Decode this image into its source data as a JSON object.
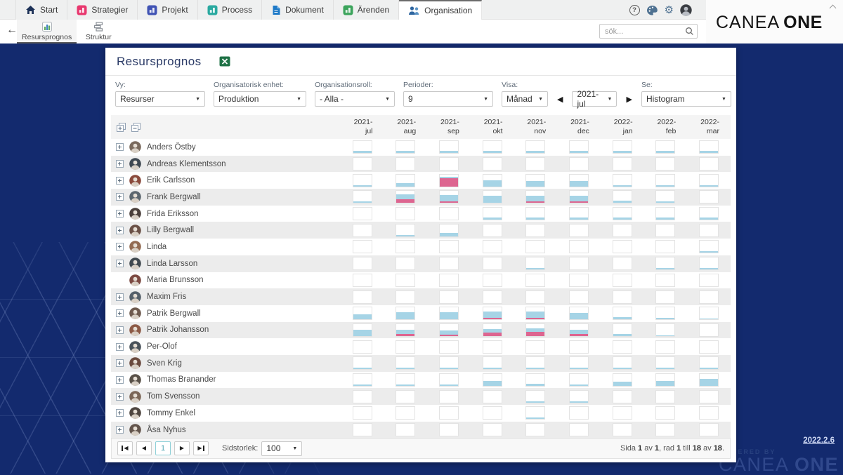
{
  "app": {
    "logo_regular": "CANEA",
    "logo_bold": "ONE",
    "version": "2022.2.6",
    "powered_by": "POWERED BY",
    "watermark_regular": "CANEA",
    "watermark_bold": "ONE",
    "help_glyph": "?"
  },
  "top_nav": {
    "tabs": [
      {
        "label": "Start",
        "icon": "home",
        "color": "#1c3157",
        "active": false
      },
      {
        "label": "Strategier",
        "icon": "square",
        "color": "#e8376e",
        "active": false
      },
      {
        "label": "Projekt",
        "icon": "square",
        "color": "#4053b4",
        "active": false
      },
      {
        "label": "Process",
        "icon": "square",
        "color": "#2aa9a0",
        "active": false
      },
      {
        "label": "Dokument",
        "icon": "doc",
        "color": "#1d79c7",
        "active": false
      },
      {
        "label": "Ärenden",
        "icon": "square",
        "color": "#3ca45c",
        "active": false
      },
      {
        "label": "Organisation",
        "icon": "people",
        "color": "#2f66a0",
        "active": true
      }
    ]
  },
  "toolbar": {
    "back_glyph": "←",
    "tabs": [
      {
        "label": "Resursprognos",
        "icon": "chart",
        "active": true
      },
      {
        "label": "Struktur",
        "icon": "tree",
        "active": false
      }
    ],
    "search_placeholder": "sök..."
  },
  "panel": {
    "title": "Resursprognos",
    "filters": [
      {
        "label": "Vy:",
        "value": "Resurser",
        "nav": false
      },
      {
        "label": "Organisatorisk enhet:",
        "value": "Produktion",
        "nav": false
      },
      {
        "label": "Organisationsroll:",
        "value": "- Alla -",
        "nav": false
      },
      {
        "label": "Perioder:",
        "value": "9",
        "nav": false
      },
      {
        "label": "Visa:",
        "value": "Månad",
        "nav": false
      },
      {
        "label": "",
        "value": "2021-jul",
        "nav": true
      },
      {
        "label": "Se:",
        "value": "Histogram",
        "nav": false
      }
    ]
  },
  "grid": {
    "months": [
      {
        "line1": "2021-",
        "line2": "jul"
      },
      {
        "line1": "2021-",
        "line2": "aug"
      },
      {
        "line1": "2021-",
        "line2": "sep"
      },
      {
        "line1": "2021-",
        "line2": "okt"
      },
      {
        "line1": "2021-",
        "line2": "nov"
      },
      {
        "line1": "2021-",
        "line2": "dec"
      },
      {
        "line1": "2022-",
        "line2": "jan"
      },
      {
        "line1": "2022-",
        "line2": "feb"
      },
      {
        "line1": "2022-",
        "line2": "mar"
      }
    ],
    "rows": [
      {
        "name": "Anders Östby",
        "expandable": true,
        "cells": [
          [
            14,
            0
          ],
          [
            14,
            0
          ],
          [
            14,
            0
          ],
          [
            14,
            0
          ],
          [
            14,
            0
          ],
          [
            14,
            0
          ],
          [
            14,
            0
          ],
          [
            14,
            0
          ],
          [
            14,
            0
          ]
        ]
      },
      {
        "name": "Andreas Klementsson",
        "expandable": true,
        "cells": [
          [
            0,
            0
          ],
          [
            0,
            0
          ],
          [
            0,
            0
          ],
          [
            0,
            0
          ],
          [
            0,
            0
          ],
          [
            0,
            0
          ],
          [
            0,
            0
          ],
          [
            0,
            0
          ],
          [
            0,
            0
          ]
        ]
      },
      {
        "name": "Erik Carlsson",
        "expandable": true,
        "cells": [
          [
            12,
            0
          ],
          [
            24,
            0
          ],
          [
            8,
            62
          ],
          [
            48,
            0
          ],
          [
            44,
            0
          ],
          [
            44,
            0
          ],
          [
            12,
            0
          ],
          [
            12,
            0
          ],
          [
            12,
            0
          ]
        ]
      },
      {
        "name": "Frank Bergwall",
        "expandable": true,
        "cells": [
          [
            12,
            0
          ],
          [
            38,
            28
          ],
          [
            48,
            8
          ],
          [
            50,
            0
          ],
          [
            44,
            8
          ],
          [
            44,
            8
          ],
          [
            18,
            0
          ],
          [
            10,
            0
          ],
          [
            0,
            0
          ]
        ]
      },
      {
        "name": "Frida Eriksson",
        "expandable": true,
        "cells": [
          [
            0,
            0
          ],
          [
            0,
            0
          ],
          [
            0,
            0
          ],
          [
            18,
            0
          ],
          [
            18,
            0
          ],
          [
            18,
            0
          ],
          [
            18,
            0
          ],
          [
            18,
            0
          ],
          [
            18,
            0
          ]
        ]
      },
      {
        "name": "Lilly Bergwall",
        "expandable": true,
        "cells": [
          [
            0,
            0
          ],
          [
            10,
            0
          ],
          [
            26,
            0
          ],
          [
            0,
            0
          ],
          [
            0,
            0
          ],
          [
            0,
            0
          ],
          [
            0,
            0
          ],
          [
            0,
            0
          ],
          [
            0,
            0
          ]
        ]
      },
      {
        "name": "Linda",
        "expandable": true,
        "cells": [
          [
            0,
            0
          ],
          [
            0,
            0
          ],
          [
            0,
            0
          ],
          [
            0,
            0
          ],
          [
            0,
            0
          ],
          [
            0,
            0
          ],
          [
            0,
            0
          ],
          [
            0,
            0
          ],
          [
            10,
            0
          ]
        ]
      },
      {
        "name": "Linda Larsson",
        "expandable": true,
        "cells": [
          [
            0,
            0
          ],
          [
            0,
            0
          ],
          [
            0,
            0
          ],
          [
            0,
            0
          ],
          [
            10,
            0
          ],
          [
            0,
            0
          ],
          [
            0,
            0
          ],
          [
            12,
            0
          ],
          [
            12,
            0
          ]
        ]
      },
      {
        "name": "Maria Brunsson",
        "expandable": false,
        "cells": [
          [
            0,
            0
          ],
          [
            0,
            0
          ],
          [
            0,
            0
          ],
          [
            0,
            0
          ],
          [
            0,
            0
          ],
          [
            0,
            0
          ],
          [
            0,
            0
          ],
          [
            0,
            0
          ],
          [
            0,
            0
          ]
        ]
      },
      {
        "name": "Maxim Fris",
        "expandable": true,
        "cells": [
          [
            0,
            0
          ],
          [
            0,
            0
          ],
          [
            0,
            0
          ],
          [
            0,
            0
          ],
          [
            0,
            0
          ],
          [
            0,
            0
          ],
          [
            0,
            0
          ],
          [
            0,
            0
          ],
          [
            0,
            0
          ]
        ]
      },
      {
        "name": "Patrik Bergwall",
        "expandable": true,
        "cells": [
          [
            36,
            0
          ],
          [
            50,
            0
          ],
          [
            50,
            0
          ],
          [
            46,
            8
          ],
          [
            46,
            8
          ],
          [
            46,
            0
          ],
          [
            18,
            0
          ],
          [
            10,
            0
          ],
          [
            5,
            0
          ]
        ]
      },
      {
        "name": "Patrik Johansson",
        "expandable": true,
        "cells": [
          [
            46,
            0
          ],
          [
            34,
            16
          ],
          [
            34,
            12
          ],
          [
            28,
            26
          ],
          [
            24,
            30
          ],
          [
            30,
            16
          ],
          [
            16,
            0
          ],
          [
            6,
            0
          ],
          [
            0,
            0
          ]
        ]
      },
      {
        "name": "Per-Olof",
        "expandable": true,
        "cells": [
          [
            0,
            0
          ],
          [
            0,
            0
          ],
          [
            0,
            0
          ],
          [
            0,
            0
          ],
          [
            0,
            0
          ],
          [
            0,
            0
          ],
          [
            0,
            0
          ],
          [
            0,
            0
          ],
          [
            0,
            0
          ]
        ]
      },
      {
        "name": "Sven Krig",
        "expandable": true,
        "cells": [
          [
            12,
            0
          ],
          [
            12,
            0
          ],
          [
            12,
            0
          ],
          [
            12,
            0
          ],
          [
            12,
            0
          ],
          [
            12,
            0
          ],
          [
            12,
            0
          ],
          [
            12,
            0
          ],
          [
            12,
            0
          ]
        ]
      },
      {
        "name": "Thomas Branander",
        "expandable": true,
        "cells": [
          [
            12,
            0
          ],
          [
            12,
            0
          ],
          [
            12,
            0
          ],
          [
            38,
            0
          ],
          [
            16,
            0
          ],
          [
            12,
            0
          ],
          [
            34,
            0
          ],
          [
            38,
            0
          ],
          [
            52,
            0
          ]
        ]
      },
      {
        "name": "Tom Svensson",
        "expandable": true,
        "cells": [
          [
            0,
            0
          ],
          [
            0,
            0
          ],
          [
            0,
            0
          ],
          [
            0,
            0
          ],
          [
            12,
            0
          ],
          [
            12,
            0
          ],
          [
            0,
            0
          ],
          [
            0,
            0
          ],
          [
            0,
            0
          ]
        ]
      },
      {
        "name": "Tommy Enkel",
        "expandable": true,
        "cells": [
          [
            0,
            0
          ],
          [
            0,
            0
          ],
          [
            0,
            0
          ],
          [
            0,
            0
          ],
          [
            12,
            0
          ],
          [
            0,
            0
          ],
          [
            0,
            0
          ],
          [
            0,
            0
          ],
          [
            0,
            0
          ]
        ]
      },
      {
        "name": "Åsa Nyhus",
        "expandable": true,
        "cells": [
          [
            0,
            0
          ],
          [
            0,
            0
          ],
          [
            0,
            0
          ],
          [
            0,
            0
          ],
          [
            0,
            0
          ],
          [
            0,
            0
          ],
          [
            0,
            0
          ],
          [
            0,
            0
          ],
          [
            0,
            0
          ]
        ]
      }
    ]
  },
  "pager": {
    "page": "1",
    "size_label": "Sidstorlek:",
    "page_size": "100",
    "info_parts": [
      {
        "t": "Sida "
      },
      {
        "t": "1",
        "b": true
      },
      {
        "t": " av "
      },
      {
        "t": "1",
        "b": true
      },
      {
        "t": ", rad "
      },
      {
        "t": "1",
        "b": true
      },
      {
        "t": " till "
      },
      {
        "t": "18",
        "b": true
      },
      {
        "t": " av "
      },
      {
        "t": "18",
        "b": true
      },
      {
        "t": "."
      }
    ]
  },
  "colors": {
    "bar_blue": "#a6d4e6",
    "bar_pink": "#dd6590",
    "background_navy": "#132a6e"
  }
}
